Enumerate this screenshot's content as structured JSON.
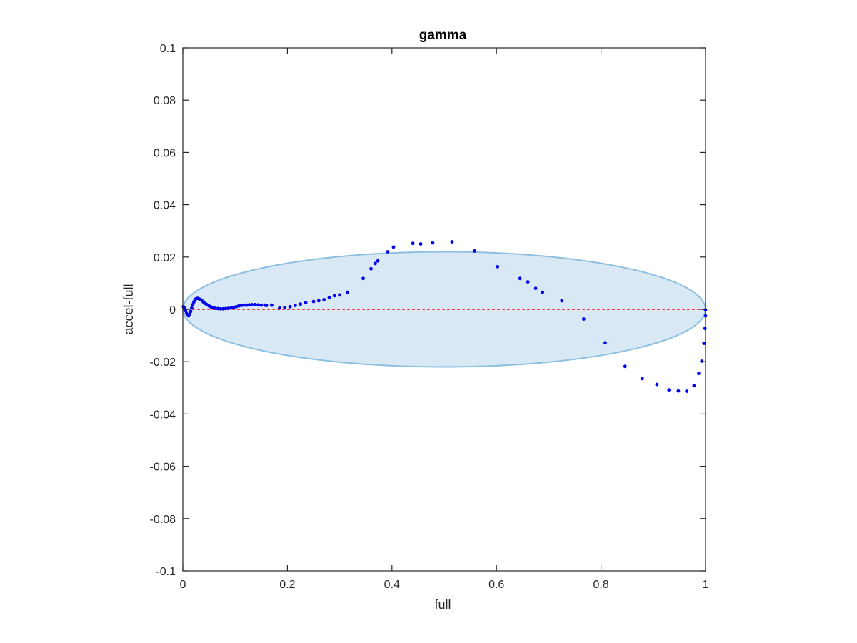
{
  "chart_data": {
    "type": "scatter",
    "title": "gamma",
    "xlabel": "full",
    "ylabel": "accel-full",
    "xlim": [
      0,
      1
    ],
    "ylim": [
      -0.1,
      0.1
    ],
    "x_ticks": [
      0,
      0.2,
      0.4,
      0.6,
      0.8,
      1
    ],
    "x_tick_labels": [
      "0",
      "0.2",
      "0.4",
      "0.6",
      "0.8",
      "1"
    ],
    "y_ticks": [
      -0.1,
      -0.08,
      -0.06,
      -0.04,
      -0.02,
      0,
      0.02,
      0.04,
      0.06,
      0.08,
      0.1
    ],
    "y_tick_labels": [
      "-0.1",
      "-0.08",
      "-0.06",
      "-0.04",
      "-0.02",
      "0",
      "0.02",
      "0.04",
      "0.06",
      "0.08",
      "0.1"
    ],
    "grid": false,
    "reference_line": {
      "y": 0,
      "style": "dotted",
      "color": "#ff3030"
    },
    "ellipse": {
      "center": [
        0.5,
        0
      ],
      "x_radius": 0.5,
      "y_radius": 0.022,
      "fill": "#d8e8f4",
      "stroke": "#8cbfe0"
    },
    "series": [
      {
        "color": "#0000ee",
        "points": [
          [
            0.001,
            0.001
          ],
          [
            0.003,
            0.0005
          ],
          [
            0.005,
            -0.0005
          ],
          [
            0.007,
            -0.0015
          ],
          [
            0.009,
            -0.0022
          ],
          [
            0.011,
            -0.0025
          ],
          [
            0.013,
            -0.002
          ],
          [
            0.015,
            -0.0008
          ],
          [
            0.017,
            0.0005
          ],
          [
            0.019,
            0.0018
          ],
          [
            0.021,
            0.0028
          ],
          [
            0.023,
            0.0035
          ],
          [
            0.025,
            0.004
          ],
          [
            0.028,
            0.0042
          ],
          [
            0.031,
            0.004
          ],
          [
            0.034,
            0.0037
          ],
          [
            0.037,
            0.0032
          ],
          [
            0.04,
            0.0027
          ],
          [
            0.043,
            0.0022
          ],
          [
            0.046,
            0.0018
          ],
          [
            0.05,
            0.0013
          ],
          [
            0.054,
            0.0009
          ],
          [
            0.058,
            0.0006
          ],
          [
            0.062,
            0.0004
          ],
          [
            0.067,
            0.0003
          ],
          [
            0.072,
            0.0002
          ],
          [
            0.077,
            0.0002
          ],
          [
            0.082,
            0.0003
          ],
          [
            0.087,
            0.0004
          ],
          [
            0.092,
            0.0005
          ],
          [
            0.097,
            0.0007
          ],
          [
            0.102,
            0.001
          ],
          [
            0.107,
            0.0013
          ],
          [
            0.112,
            0.0015
          ],
          [
            0.117,
            0.0016
          ],
          [
            0.122,
            0.0016
          ],
          [
            0.127,
            0.0017
          ],
          [
            0.132,
            0.0018
          ],
          [
            0.138,
            0.0018
          ],
          [
            0.144,
            0.0017
          ],
          [
            0.15,
            0.0016
          ],
          [
            0.157,
            0.0016
          ],
          [
            0.16,
            0.0015
          ],
          [
            0.17,
            0.0016
          ],
          [
            0.185,
            0.0005
          ],
          [
            0.195,
            0.0007
          ],
          [
            0.205,
            0.001
          ],
          [
            0.215,
            0.0015
          ],
          [
            0.225,
            0.002
          ],
          [
            0.235,
            0.0025
          ],
          [
            0.25,
            0.003
          ],
          [
            0.26,
            0.0033
          ],
          [
            0.27,
            0.0037
          ],
          [
            0.28,
            0.0045
          ],
          [
            0.29,
            0.0052
          ],
          [
            0.3,
            0.0055
          ],
          [
            0.315,
            0.0065
          ],
          [
            0.345,
            0.0118
          ],
          [
            0.36,
            0.0155
          ],
          [
            0.368,
            0.0175
          ],
          [
            0.373,
            0.0185
          ],
          [
            0.392,
            0.022
          ],
          [
            0.403,
            0.0238
          ],
          [
            0.44,
            0.0252
          ],
          [
            0.455,
            0.025
          ],
          [
            0.478,
            0.0254
          ],
          [
            0.515,
            0.0258
          ],
          [
            0.558,
            0.0223
          ],
          [
            0.602,
            0.0163
          ],
          [
            0.645,
            0.0118
          ],
          [
            0.66,
            0.0105
          ],
          [
            0.675,
            0.008
          ],
          [
            0.688,
            0.0065
          ],
          [
            0.725,
            0.0033
          ],
          [
            0.767,
            -0.0037
          ],
          [
            0.808,
            -0.0128
          ],
          [
            0.846,
            -0.0218
          ],
          [
            0.879,
            -0.0265
          ],
          [
            0.907,
            -0.0287
          ],
          [
            0.93,
            -0.0308
          ],
          [
            0.948,
            -0.0312
          ],
          [
            0.964,
            -0.0313
          ],
          [
            0.978,
            -0.0292
          ],
          [
            0.987,
            -0.0245
          ],
          [
            0.993,
            -0.0198
          ],
          [
            0.997,
            -0.013
          ],
          [
            0.999,
            -0.0073
          ],
          [
            1.0,
            -0.0025
          ],
          [
            1.0,
            -0.0002
          ]
        ]
      }
    ]
  }
}
